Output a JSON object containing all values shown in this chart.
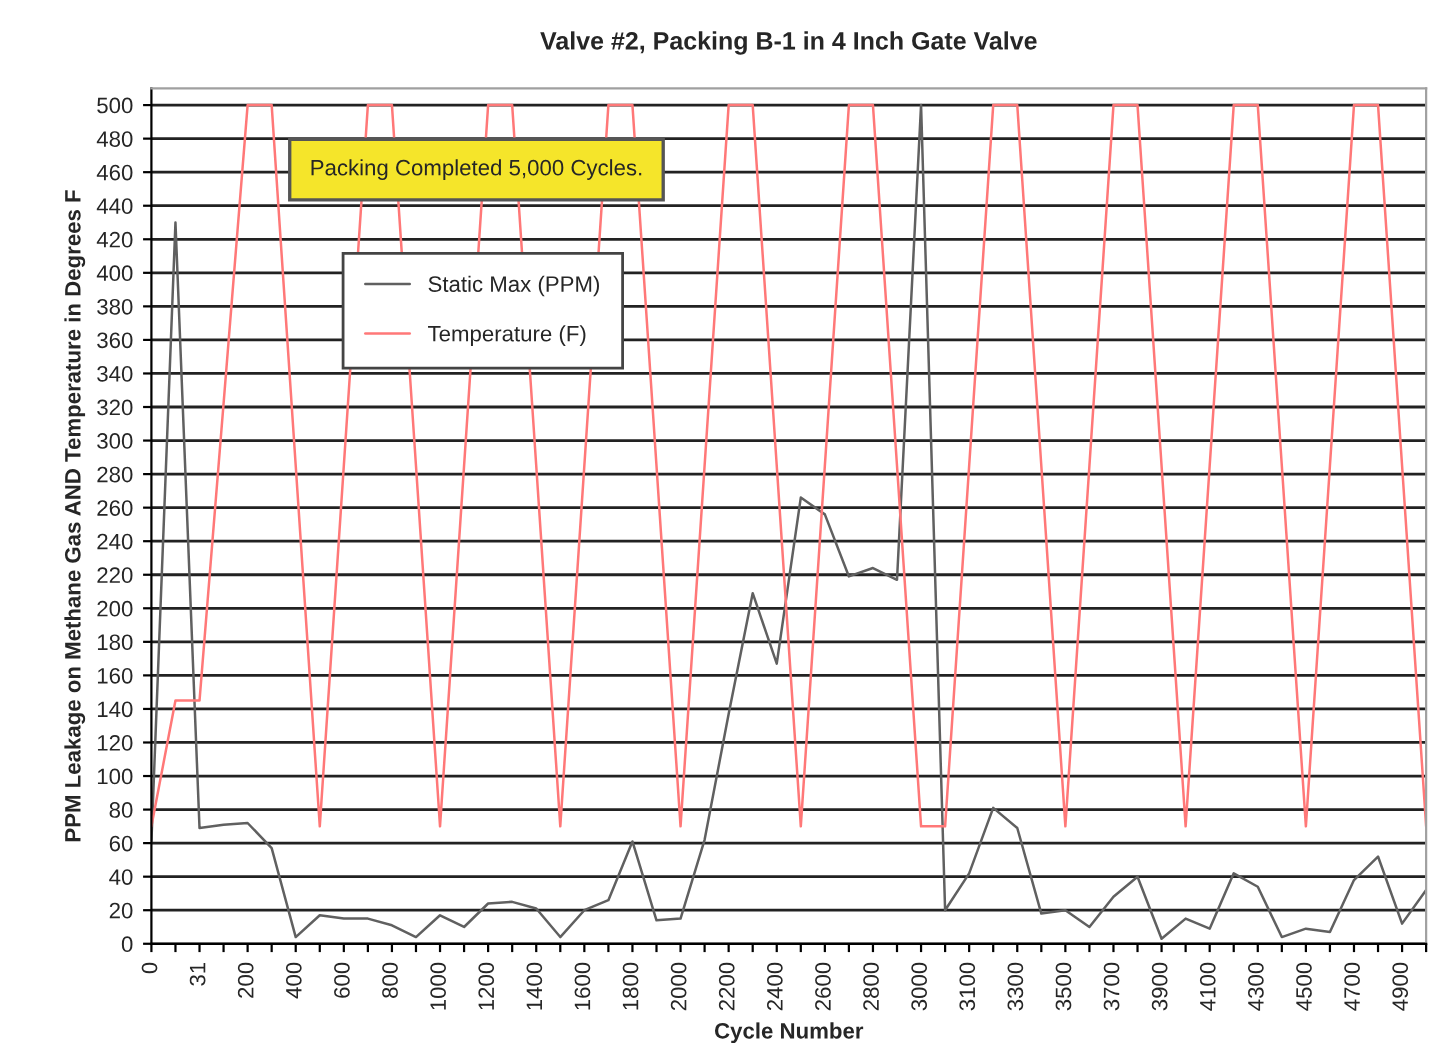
{
  "chart_data": {
    "type": "line",
    "title": "Valve #2, Packing B-1 in 4 Inch Gate Valve",
    "xlabel": "Cycle Number",
    "ylabel": "PPM Leakage on Methane Gas AND Temperature in Degrees F",
    "categories": [
      "0",
      null,
      "31",
      null,
      "200",
      null,
      "400",
      null,
      "600",
      null,
      "800",
      null,
      "1000",
      null,
      "1200",
      null,
      "1400",
      null,
      "1600",
      null,
      "1800",
      null,
      "2000",
      null,
      "2200",
      null,
      "2400",
      null,
      "2600",
      null,
      "2800",
      null,
      "3000",
      null,
      "3100",
      null,
      "3300",
      null,
      "3500",
      null,
      "3700",
      null,
      "3900",
      null,
      "4100",
      null,
      "4300",
      null,
      "4500",
      null,
      "4700",
      null,
      "4900",
      null
    ],
    "series": [
      {
        "name": "Static Max (PPM)",
        "color": "#606060",
        "values": [
          61,
          430,
          69,
          71,
          72,
          57,
          4,
          17,
          15,
          15,
          11,
          4,
          17,
          10,
          24,
          25,
          21,
          4,
          20,
          26,
          61,
          14,
          15,
          62,
          137,
          209,
          167,
          266,
          256,
          219,
          224,
          217,
          500,
          20,
          42,
          81,
          69,
          18,
          20,
          10,
          28,
          40,
          3,
          15,
          9,
          42,
          34,
          4,
          9,
          7,
          38,
          52,
          12,
          32
        ]
      },
      {
        "name": "Temperature (F)",
        "color": "#ff7878",
        "values": [
          70,
          145,
          145,
          322,
          500,
          500,
          285,
          70,
          285,
          500,
          500,
          285,
          70,
          285,
          500,
          500,
          285,
          70,
          285,
          500,
          500,
          285,
          70,
          285,
          500,
          500,
          285,
          70,
          285,
          500,
          500,
          285,
          70,
          70,
          285,
          500,
          500,
          285,
          70,
          285,
          500,
          500,
          285,
          70,
          285,
          500,
          500,
          285,
          70,
          285,
          500,
          500,
          285,
          70
        ]
      }
    ],
    "ylim": [
      0,
      510
    ],
    "yticks": [
      0,
      20,
      40,
      60,
      80,
      100,
      120,
      140,
      160,
      180,
      200,
      220,
      240,
      260,
      280,
      300,
      320,
      340,
      360,
      380,
      400,
      420,
      440,
      460,
      480,
      500
    ],
    "grid": "y",
    "legend": "top",
    "marker": "none",
    "line_style": "solid",
    "annotations": [
      "Packing Completed 5,000 Cycles."
    ]
  }
}
